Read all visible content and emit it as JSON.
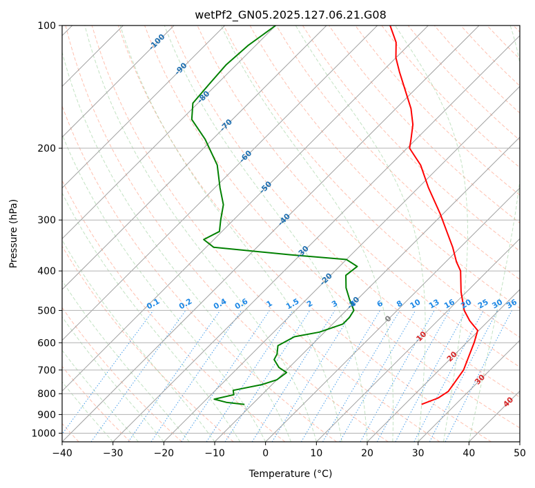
{
  "chart_data": {
    "type": "line",
    "title": "wetPf2_GN05.2025.127.06.21.G08",
    "xlabel": "Temperature (°C)",
    "ylabel": "Pressure (hPa)",
    "xlim": [
      -40,
      50
    ],
    "ylim": [
      1050,
      100
    ],
    "y_scale": "log",
    "skew": true,
    "grid": true,
    "x_ticks": [
      -40,
      -30,
      -20,
      -10,
      0,
      10,
      20,
      30,
      40,
      50
    ],
    "y_ticks": [
      100,
      200,
      300,
      400,
      500,
      600,
      700,
      800,
      900,
      1000
    ],
    "series": [
      {
        "color": "#ff0000",
        "points": [
          {
            "p": 850,
            "t": 23.3
          },
          {
            "p": 820,
            "t": 25.3
          },
          {
            "p": 790,
            "t": 26.0
          },
          {
            "p": 750,
            "t": 25.5
          },
          {
            "p": 700,
            "t": 24.8
          },
          {
            "p": 650,
            "t": 23.2
          },
          {
            "p": 600,
            "t": 21.5
          },
          {
            "p": 560,
            "t": 19.8
          },
          {
            "p": 530,
            "t": 16.3
          },
          {
            "p": 500,
            "t": 13.2
          },
          {
            "p": 450,
            "t": 8.9
          },
          {
            "p": 400,
            "t": 4.7
          },
          {
            "p": 380,
            "t": 2.1
          },
          {
            "p": 350,
            "t": -1.5
          },
          {
            "p": 320,
            "t": -5.8
          },
          {
            "p": 290,
            "t": -10.5
          },
          {
            "p": 250,
            "t": -18.0
          },
          {
            "p": 220,
            "t": -24.0
          },
          {
            "p": 200,
            "t": -29.5
          },
          {
            "p": 190,
            "t": -31.0
          },
          {
            "p": 175,
            "t": -33.5
          },
          {
            "p": 160,
            "t": -37.0
          },
          {
            "p": 145,
            "t": -41.5
          },
          {
            "p": 130,
            "t": -46.5
          },
          {
            "p": 120,
            "t": -50.0
          },
          {
            "p": 110,
            "t": -53.0
          },
          {
            "p": 100,
            "t": -57.5
          }
        ]
      },
      {
        "color": "#008000",
        "points": [
          {
            "p": 850,
            "t": -11.5
          },
          {
            "p": 840,
            "t": -15.5
          },
          {
            "p": 825,
            "t": -18.5
          },
          {
            "p": 805,
            "t": -15.5
          },
          {
            "p": 785,
            "t": -16.5
          },
          {
            "p": 760,
            "t": -12.0
          },
          {
            "p": 740,
            "t": -10.0
          },
          {
            "p": 710,
            "t": -9.5
          },
          {
            "p": 690,
            "t": -12.0
          },
          {
            "p": 660,
            "t": -14.5
          },
          {
            "p": 640,
            "t": -15.0
          },
          {
            "p": 610,
            "t": -16.5
          },
          {
            "p": 580,
            "t": -15.0
          },
          {
            "p": 565,
            "t": -11.0
          },
          {
            "p": 540,
            "t": -8.0
          },
          {
            "p": 520,
            "t": -8.0
          },
          {
            "p": 500,
            "t": -8.5
          },
          {
            "p": 470,
            "t": -11.5
          },
          {
            "p": 440,
            "t": -14.5
          },
          {
            "p": 410,
            "t": -17.0
          },
          {
            "p": 390,
            "t": -16.5
          },
          {
            "p": 375,
            "t": -20.0
          },
          {
            "p": 365,
            "t": -32.0
          },
          {
            "p": 350,
            "t": -48.5
          },
          {
            "p": 335,
            "t": -52.0
          },
          {
            "p": 320,
            "t": -50.5
          },
          {
            "p": 300,
            "t": -52.5
          },
          {
            "p": 275,
            "t": -55.0
          },
          {
            "p": 250,
            "t": -59.0
          },
          {
            "p": 220,
            "t": -64.0
          },
          {
            "p": 190,
            "t": -71.5
          },
          {
            "p": 170,
            "t": -78.0
          },
          {
            "p": 155,
            "t": -81.0
          },
          {
            "p": 140,
            "t": -81.5
          },
          {
            "p": 125,
            "t": -82.0
          },
          {
            "p": 112,
            "t": -81.5
          },
          {
            "p": 100,
            "t": -80.0
          }
        ]
      }
    ],
    "reference_lines": {
      "dry_adiabats": {
        "color": "#ff8c6e"
      },
      "moist_adiabats": {
        "color": "#8fca8f"
      },
      "mixing_ratio": {
        "color": "#1e88e5"
      },
      "isotherms": {
        "color": "#a0a0a0"
      }
    },
    "annotations": {
      "mixing_ratio_labels": [
        "0.1",
        "0.2",
        "0.4",
        "0.6",
        "1",
        "1.5",
        "2",
        "3",
        "4",
        "6",
        "8",
        "10",
        "13",
        "16",
        "20",
        "25",
        "30",
        "36"
      ],
      "isotherm_labels_blue": [
        "-100",
        "-90",
        "-80",
        "-70",
        "-60",
        "-50",
        "-40",
        "-30",
        "-20",
        "-10"
      ],
      "isotherm_label_zero": "0",
      "isotherm_labels_red": [
        "10",
        "20",
        "30",
        "40"
      ]
    }
  }
}
